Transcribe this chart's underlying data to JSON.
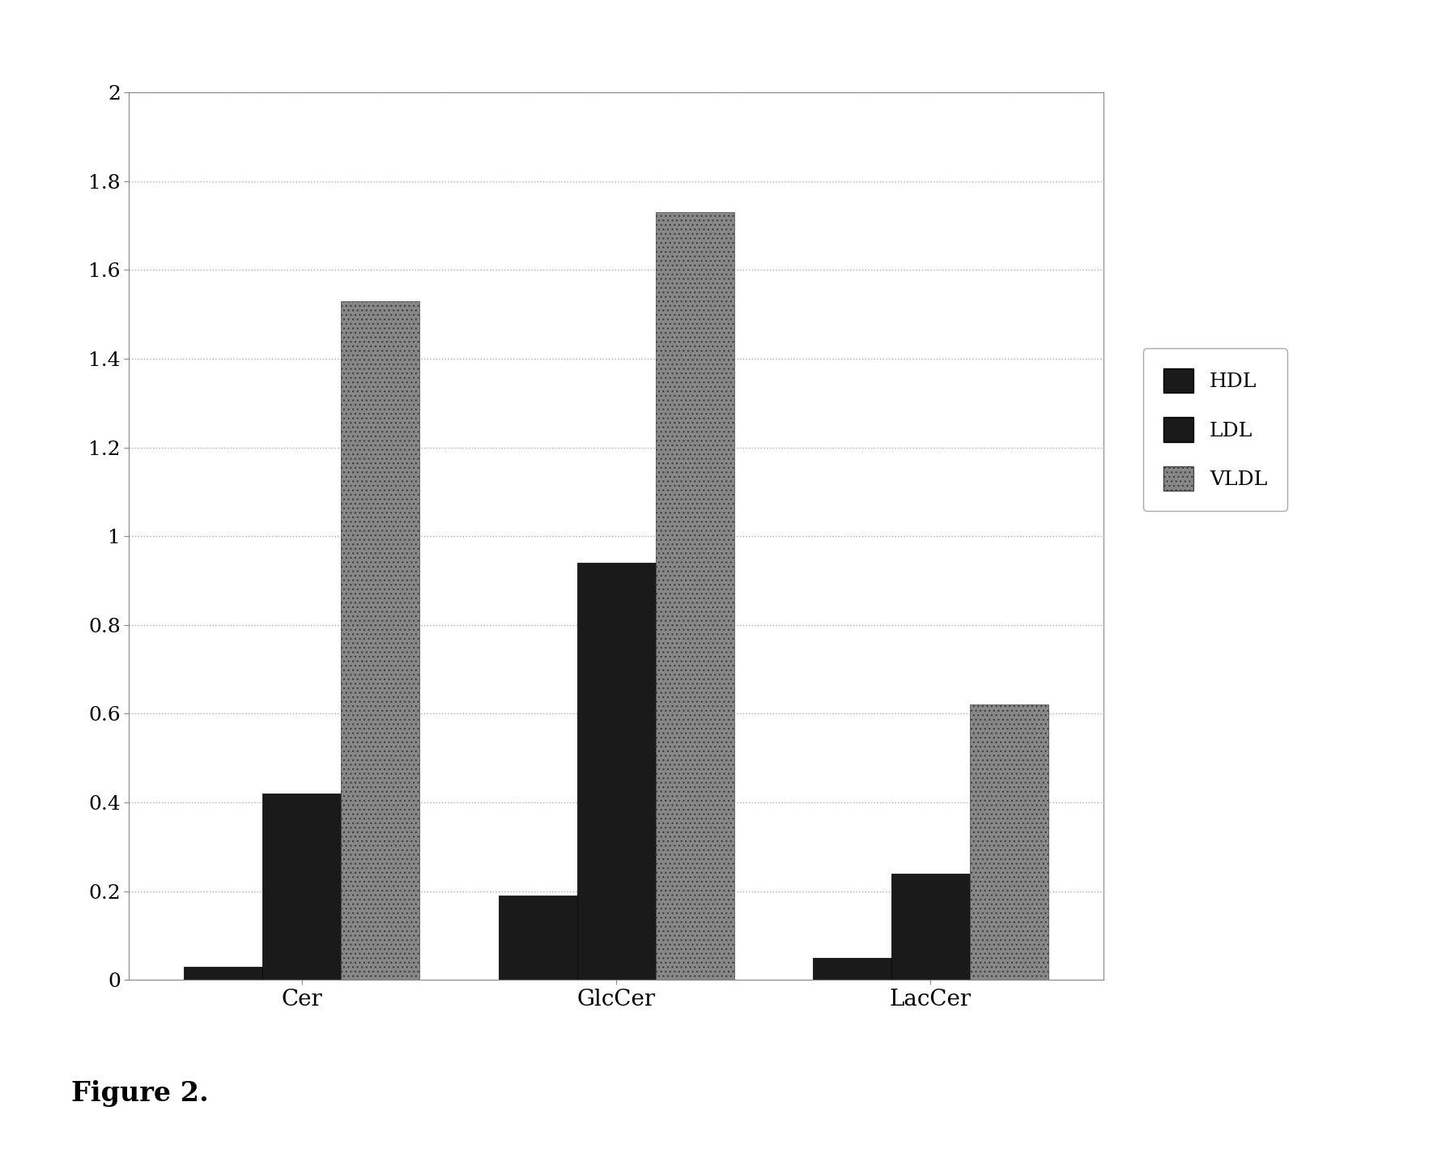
{
  "categories": [
    "Cer",
    "GlcCer",
    "LacCer"
  ],
  "series": {
    "HDL": [
      0.03,
      0.19,
      0.05
    ],
    "LDL": [
      0.42,
      0.94,
      0.24
    ],
    "VLDL": [
      1.53,
      1.73,
      0.62
    ]
  },
  "ylim": [
    0,
    2.0
  ],
  "yticks": [
    0,
    0.2,
    0.4,
    0.6,
    0.8,
    1.0,
    1.2,
    1.4,
    1.6,
    1.8,
    2.0
  ],
  "legend_labels": [
    "HDL",
    "LDL",
    "VLDL"
  ],
  "figure_label": "Figure 2.",
  "bar_width": 0.25,
  "hdl_color": "#1a1a1a",
  "ldl_color": "#1a1a1a",
  "vldl_color": "#888888",
  "background_color": "#ffffff",
  "plot_bg_color": "#ffffff",
  "grid_color": "#aaaaaa",
  "tick_fontsize": 18,
  "axis_fontsize": 20,
  "legend_fontsize": 18,
  "figure_label_fontsize": 24
}
